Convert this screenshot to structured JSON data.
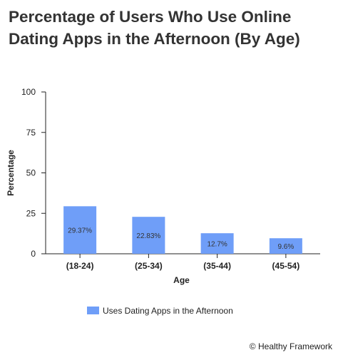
{
  "title": "Percentage of Users Who Use Online Dating Apps in the Afternoon (By Age)",
  "credit": "© Healthy Framework",
  "chart_data": {
    "type": "bar",
    "title": "Percentage of Users Who Use Online Dating Apps in the Afternoon (By Age)",
    "xlabel": "Age",
    "ylabel": "Percentage",
    "categories": [
      "(18-24)",
      "(25-34)",
      "(35-44)",
      "(45-54)"
    ],
    "series": [
      {
        "name": "Uses Dating Apps in the Afternoon",
        "values": [
          29.37,
          22.83,
          12.7,
          9.6
        ],
        "labels": [
          "29.37%",
          "22.83%",
          "12.7%",
          "9.6%"
        ],
        "color": "#6f9ef8"
      }
    ],
    "ylim": [
      0,
      100
    ],
    "yticks": [
      0,
      25,
      50,
      75,
      100
    ],
    "grid": false,
    "legend": "bottom"
  }
}
